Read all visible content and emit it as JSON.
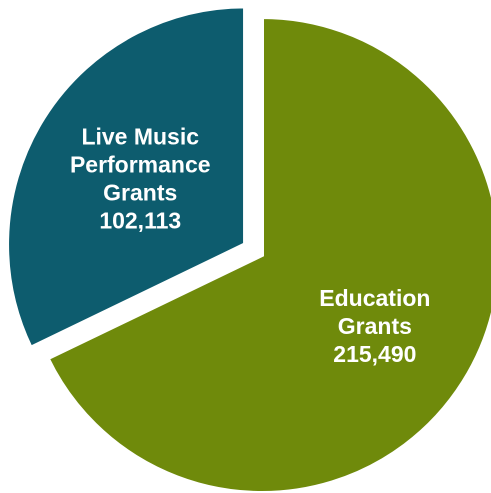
{
  "chart_data": {
    "type": "pie",
    "title": "",
    "legend": "none",
    "slices": [
      {
        "label_lines": [
          "Education",
          "Grants"
        ],
        "value": 215490,
        "value_label": "215,490",
        "color": "#6f8a0b"
      },
      {
        "label_lines": [
          "Live Music",
          "Performance",
          "Grants"
        ],
        "value": 102113,
        "value_label": "102,113",
        "color": "#0d5c6e",
        "exploded": true
      }
    ]
  }
}
